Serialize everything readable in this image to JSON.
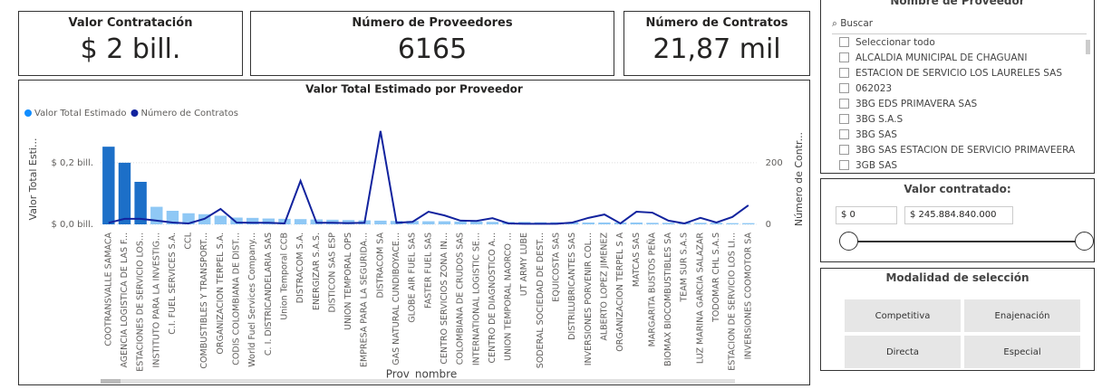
{
  "cards": [
    {
      "title": "Valor Contratación",
      "value": "$ 2 bill."
    },
    {
      "title": "Número de Proveedores",
      "value": "6165"
    },
    {
      "title": "Número de Contratos",
      "value": "21,87 mil"
    }
  ],
  "chart_data": {
    "type": "bar_line",
    "title": "Valor Total Estimado por Proveedor",
    "x_label": "Prov_nombre",
    "y_label": "Valor Total Esti...",
    "y2_label": "Número de Contr...",
    "categories": [
      "COOTRANSVALLE SAMACA",
      "AGENCIA LOGISTICA DE LAS F...",
      "ESTACIONES DE SERVICIO LOS...",
      "INSTITUTO PARA LA INVESTIG...",
      "C.I. FUEL SERVICES S.A.",
      "CCL",
      "COMBUSTIBLES Y TRANSPORT...",
      "ORGANIZACION TERPEL S.A.",
      "CODIS COLOMBIANA DE DIST...",
      "World Fuel Services Company...",
      "C. I. DISTRICANDELARIA SAS",
      "Union Temporal CCB",
      "DISTRACOM S.A.",
      "ENERGIZAR S.A.S.",
      "DISTICON SAS ESP",
      "UNION TEMPORAL OPS",
      "EMPRESA PARA LA SEGURIDA...",
      "DISTRACOM SA",
      "GAS NATURAL CUNDIBOYACE...",
      "GLOBE AIR FUEL SAS",
      "FASTER FUEL SAS",
      "CENTRO SERVICIOS ZONA IN...",
      "COLOMBIANA DE CRUDOS SAS",
      "INTERNATIONAL LOGISTIC SE...",
      "CENTRO DE DIAGNOSTICO A...",
      "UNION TEMPORAL NAORCO ...",
      "UT ARMY LUBE",
      "SODERAL SOCIEDAD DE DEST...",
      "EQUICOSTA SAS",
      "DISTRILUBRICANTES SAS",
      "INVERSIONES PORVENIR COL...",
      "ALBERTO LOPEZ JIMENEZ",
      "ORGANIZACION TERPEL S A",
      "MATCAS SAS",
      "MARGARITA BUSTOS PEÑA",
      "BIOMAX BIOCOMBUSTIBLES SA",
      "TEAM SUR S.A.S",
      "LUZ MARINA GARCIA SALAZAR",
      "TODOMAR CHL S.A.S",
      "ESTACION DE SERVICIO LOS LI...",
      "INVERSIONES COOMOTOR SA"
    ],
    "series": [
      {
        "name": "Valor Total Estimado",
        "color": "#118dff",
        "colors": [
          "#1c6fc8",
          "#1c6fc8",
          "#1c6fc8",
          "#8fc8f5",
          "#8fc8f5",
          "#8fc8f5",
          "#8fc8f5",
          "#8fc8f5",
          "#8fc8f5",
          "#8fc8f5",
          "#8fc8f5",
          "#8fc8f5",
          "#8fc8f5",
          "#8fc8f5",
          "#8fc8f5",
          "#8fc8f5",
          "#8fc8f5",
          "#8fc8f5",
          "#8fc8f5",
          "#8fc8f5",
          "#8fc8f5",
          "#8fc8f5",
          "#8fc8f5",
          "#8fc8f5",
          "#8fc8f5",
          "#8fc8f5",
          "#8fc8f5",
          "#8fc8f5",
          "#8fc8f5",
          "#8fc8f5",
          "#8fc8f5",
          "#8fc8f5",
          "#8fc8f5",
          "#8fc8f5",
          "#8fc8f5",
          "#8fc8f5",
          "#8fc8f5",
          "#8fc8f5",
          "#8fc8f5",
          "#8fc8f5",
          "#8fc8f5"
        ],
        "values": [
          0.252,
          0.2,
          0.138,
          0.057,
          0.044,
          0.036,
          0.033,
          0.028,
          0.022,
          0.021,
          0.019,
          0.018,
          0.017,
          0.016,
          0.015,
          0.014,
          0.013,
          0.012,
          0.011,
          0.011,
          0.01,
          0.01,
          0.009,
          0.009,
          0.008,
          0.008,
          0.008,
          0.007,
          0.007,
          0.007,
          0.006,
          0.006,
          0.006,
          0.006,
          0.005,
          0.005,
          0.005,
          0.005,
          0.005,
          0.004,
          0.004
        ]
      },
      {
        "name": "Número de Contratos",
        "color": "#12239e",
        "axis": "y2",
        "values": [
          5,
          18,
          18,
          12,
          6,
          3,
          18,
          50,
          6,
          5,
          5,
          3,
          141,
          5,
          5,
          4,
          5,
          303,
          5,
          8,
          41,
          29,
          12,
          11,
          20,
          3,
          2,
          2,
          2,
          6,
          21,
          32,
          3,
          41,
          38,
          12,
          3,
          21,
          6,
          24,
          62
        ]
      }
    ],
    "ylim": [
      0,
      0.32
    ],
    "yticks": [
      {
        "value": 0,
        "label": "$ 0,0 bill."
      },
      {
        "value": 0.2,
        "label": "$ 0,2 bill."
      }
    ],
    "y2lim": [
      0,
      320
    ],
    "y2ticks": [
      0,
      200
    ],
    "grid": true
  },
  "slicer": {
    "title": "Nombre de Proveedor",
    "search": "Buscar",
    "items": [
      "Seleccionar todo",
      "ALCALDIA MUNICIPAL DE CHAGUANI",
      "ESTACION DE SERVICIO LOS LAURELES SAS",
      "062023",
      "3BG EDS PRIMAVERA SAS",
      "3BG S.A.S",
      "3BG SAS",
      "3BG SAS ESTACION DE SERVICIO PRIMAVEERA",
      "3GB SAS"
    ]
  },
  "range": {
    "title": "Valor contratado:",
    "min": "$ 0",
    "max": "$ 245.884.840.000"
  },
  "modality": {
    "title": "Modalidad de selección",
    "options": [
      "Competitiva",
      "Enajenación",
      "Directa",
      "Especial"
    ]
  }
}
